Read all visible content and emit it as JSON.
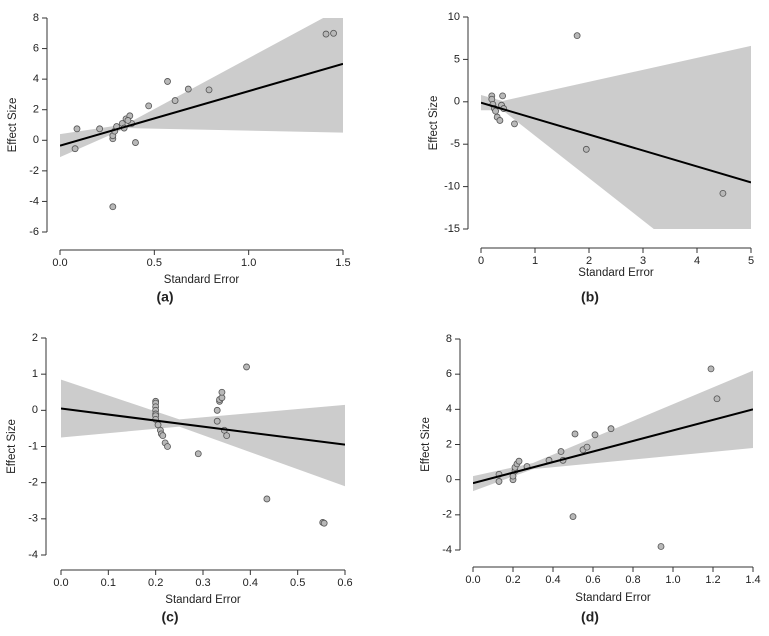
{
  "chart_data": [
    {
      "type": "scatter",
      "caption": "(a)",
      "x_label": "Standard Error",
      "y_label": "Effect Size",
      "xlim": [
        0,
        1.5
      ],
      "ylim": [
        -6,
        8
      ],
      "xticks": [
        {
          "value": 0,
          "label": "0.0"
        },
        0.5,
        {
          "value": 1,
          "label": "1.0"
        },
        {
          "value": 1.5,
          "label": "1.5"
        }
      ],
      "yticks": [
        -6,
        -4,
        -2,
        0,
        2,
        4,
        6,
        8
      ],
      "x": [
        0.09,
        0.08,
        0.21,
        0.28,
        0.28,
        0.29,
        0.3,
        0.33,
        0.34,
        0.35,
        0.37,
        0.38,
        0.36,
        0.4,
        0.28,
        0.47,
        0.57,
        0.61,
        0.68,
        0.79,
        1.41,
        1.45
      ],
      "y": [
        0.75,
        -0.55,
        0.75,
        0.1,
        0.3,
        0.6,
        0.9,
        1.1,
        0.8,
        1.4,
        1.6,
        1.1,
        1.3,
        -0.15,
        -4.35,
        2.25,
        3.85,
        2.6,
        3.35,
        3.3,
        6.95,
        7.0
      ],
      "fit": {
        "x": [
          0,
          1.5
        ],
        "y": [
          -0.35,
          5.0
        ]
      },
      "band": {
        "x": [
          0,
          0.35,
          1.5
        ],
        "lower": [
          -1.1,
          0.8,
          0.5
        ],
        "upper": [
          0.4,
          1.05,
          8.7
        ]
      },
      "point_color": "#b8b8b8",
      "band_color": "#cccccc",
      "line_color": "#000000"
    },
    {
      "type": "scatter",
      "caption": "(b)",
      "x_label": "Standard Error",
      "y_label": "Effect Size",
      "xlim": [
        0,
        5
      ],
      "ylim": [
        -15,
        10
      ],
      "xticks": [
        0,
        1,
        2,
        3,
        4,
        5
      ],
      "yticks": [
        -15,
        -10,
        -5,
        0,
        5,
        10
      ],
      "x": [
        0.2,
        0.2,
        0.22,
        0.25,
        0.27,
        0.3,
        0.35,
        0.4,
        0.38,
        0.42,
        0.62,
        1.78,
        1.95,
        4.48
      ],
      "y": [
        0.7,
        0.3,
        -0.3,
        -0.8,
        -1.1,
        -1.8,
        -2.2,
        0.7,
        -0.4,
        -0.8,
        -2.6,
        7.8,
        -5.6,
        -10.8
      ],
      "fit": {
        "x": [
          0,
          5
        ],
        "y": [
          -0.1,
          -9.5
        ]
      },
      "band": {
        "x": [
          0,
          0.4,
          5
        ],
        "lower": [
          -1.0,
          -1.0,
          -24
        ],
        "upper": [
          0.8,
          0.1,
          6.6
        ]
      },
      "point_color": "#b8b8b8",
      "band_color": "#cccccc",
      "line_color": "#000000"
    },
    {
      "type": "scatter",
      "caption": "(c)",
      "x_label": "Standard Error",
      "y_label": "Effect Size",
      "xlim": [
        0,
        0.6
      ],
      "ylim": [
        -4,
        2
      ],
      "xticks": [
        {
          "value": 0,
          "label": "0.0"
        },
        0.1,
        0.2,
        0.3,
        0.4,
        0.5,
        0.6
      ],
      "yticks": [
        -4,
        -3,
        -2,
        -1,
        0,
        1,
        2
      ],
      "x": [
        0.2,
        0.2,
        0.2,
        0.2,
        0.2,
        0.2,
        0.2,
        0.205,
        0.21,
        0.212,
        0.215,
        0.22,
        0.225,
        0.29,
        0.33,
        0.33,
        0.335,
        0.335,
        0.34,
        0.34,
        0.345,
        0.35,
        0.392,
        0.435,
        0.553,
        0.556
      ],
      "y": [
        0.25,
        0.2,
        0.1,
        0,
        -0.1,
        -0.15,
        -0.25,
        -0.4,
        -0.55,
        -0.65,
        -0.7,
        -0.9,
        -1.0,
        -1.2,
        0,
        -0.3,
        0.25,
        0.3,
        0.35,
        0.5,
        -0.55,
        -0.7,
        1.2,
        -2.45,
        -3.1,
        -3.12
      ],
      "fit": {
        "x": [
          0,
          0.6
        ],
        "y": [
          0.05,
          -0.95
        ]
      },
      "band": {
        "x": [
          0,
          0.25,
          0.6
        ],
        "lower": [
          -0.75,
          -0.45,
          -2.1
        ],
        "upper": [
          0.85,
          -0.25,
          0.15
        ]
      },
      "point_color": "#b8b8b8",
      "band_color": "#cccccc",
      "line_color": "#000000"
    },
    {
      "type": "scatter",
      "caption": "(d)",
      "x_label": "Standard Error",
      "y_label": "Effect Size",
      "xlim": [
        0,
        1.4
      ],
      "ylim": [
        -4,
        8
      ],
      "xticks": [
        {
          "value": 0,
          "label": "0.0"
        },
        0.2,
        0.4,
        0.6,
        0.8,
        {
          "value": 1,
          "label": "1.0"
        },
        1.2,
        1.4
      ],
      "yticks": [
        -4,
        -2,
        0,
        2,
        4,
        6,
        8
      ],
      "x": [
        0.13,
        0.13,
        0.2,
        0.2,
        0.21,
        0.21,
        0.22,
        0.23,
        0.27,
        0.38,
        0.44,
        0.45,
        0.5,
        0.51,
        0.55,
        0.57,
        0.61,
        0.69,
        0.94,
        1.19,
        1.22
      ],
      "y": [
        0.3,
        -0.1,
        0,
        0.2,
        0.5,
        0.7,
        0.9,
        1.05,
        0.75,
        1.1,
        1.6,
        1.1,
        -2.1,
        2.6,
        1.7,
        1.85,
        2.55,
        2.9,
        -3.8,
        6.3,
        4.6
      ],
      "fit": {
        "x": [
          0,
          1.4
        ],
        "y": [
          -0.2,
          4.0
        ]
      },
      "band": {
        "x": [
          0,
          0.3,
          1.4
        ],
        "lower": [
          -0.65,
          0.6,
          1.8
        ],
        "upper": [
          0.2,
          0.95,
          6.2
        ]
      },
      "point_color": "#b8b8b8",
      "band_color": "#cccccc",
      "line_color": "#000000"
    }
  ]
}
